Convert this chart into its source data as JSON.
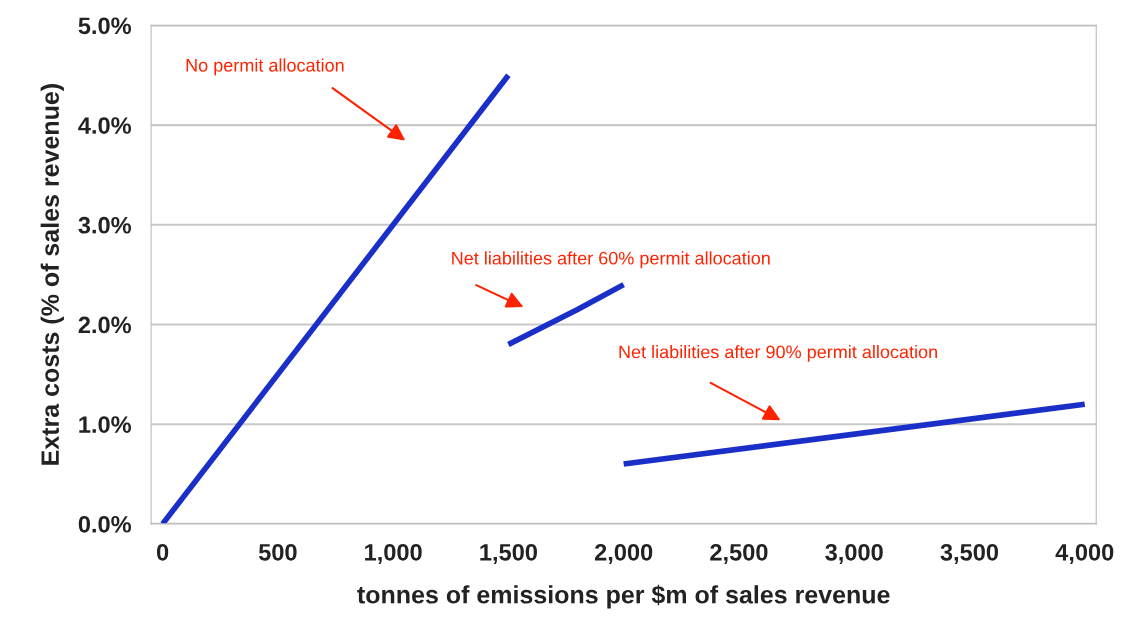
{
  "chart_data": {
    "type": "line",
    "xlabel": "tonnes of emissions per $m of sales revenue",
    "ylabel": "Extra costs (% of sales revenue)",
    "series": [
      {
        "x": [
          0,
          1500
        ],
        "values": [
          0,
          4.5
        ],
        "color": "#1a2fc8"
      },
      {
        "x": [
          1500,
          1800,
          2000
        ],
        "values": [
          1.8,
          2.15,
          2.4
        ],
        "color": "#1a2fc8"
      },
      {
        "x": [
          2000,
          4000
        ],
        "values": [
          0.6,
          1.2
        ],
        "color": "#1a2fc8"
      }
    ],
    "xlim": [
      -50,
      4050
    ],
    "xticks": [
      0,
      {
        "value": 500,
        "label": "500"
      },
      {
        "value": 1000,
        "label": "1,000"
      },
      {
        "value": 1500,
        "label": "1,500"
      },
      {
        "value": 2000,
        "label": "2,000"
      },
      {
        "value": 2500,
        "label": "2,500"
      },
      {
        "value": 3000,
        "label": "3,000"
      },
      {
        "value": 3500,
        "label": "3,500"
      },
      {
        "value": 4000,
        "label": "4,000"
      }
    ],
    "ylim": [
      0,
      5
    ],
    "yticks": [
      {
        "value": 0,
        "label": "0.0%"
      },
      {
        "value": 1,
        "label": "1.0%"
      },
      {
        "value": 2,
        "label": "2.0%"
      },
      {
        "value": 3,
        "label": "3.0%"
      },
      {
        "value": 4,
        "label": "4.0%"
      },
      {
        "value": 5,
        "label": "5.0%"
      }
    ],
    "grid": "y",
    "legend": false,
    "marker": "none",
    "line_style": "solid",
    "annotations": [
      "No permit allocation",
      "Net liabilities after 60% permit allocation",
      "Net liabilities after 90% permit allocation"
    ]
  }
}
